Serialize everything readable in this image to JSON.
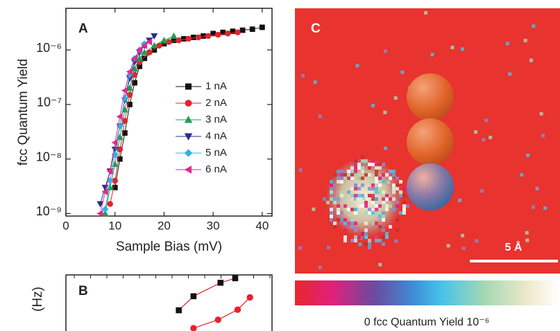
{
  "chart_data": [
    {
      "type": "line",
      "panel": "A",
      "x_label": "Sample Bias (mV)",
      "y_label": "fcc Quantum Yield",
      "yscale": "log",
      "xlim": [
        0,
        42
      ],
      "ylim": [
        9e-10,
        5.8e-06
      ],
      "xticks": [
        0,
        10,
        20,
        30,
        40
      ],
      "yticks": [
        {
          "value": 1e-09,
          "label": "10⁻⁹"
        },
        {
          "value": 1e-08,
          "label": "10⁻⁸"
        },
        {
          "value": 1e-07,
          "label": "10⁻⁷"
        },
        {
          "value": 1e-06,
          "label": "10⁻⁶"
        }
      ],
      "legend": "right",
      "series": [
        {
          "name": "1 nA",
          "color": "#111111",
          "marker": "square",
          "x": [
            10,
            11,
            12,
            13,
            14,
            15,
            16,
            18,
            20,
            22,
            24,
            26,
            28,
            30,
            32,
            34,
            36,
            38,
            40
          ],
          "values": [
            3e-09,
            1e-08,
            3e-08,
            1e-07,
            2.5e-07,
            5e-07,
            7e-07,
            1e-06,
            1.3e-06,
            1.5e-06,
            1.6e-06,
            1.7e-06,
            1.8e-06,
            2e-06,
            2.1e-06,
            2.2e-06,
            2.3e-06,
            2.4e-06,
            2.6e-06
          ]
        },
        {
          "name": "2 nA",
          "color": "#e6222c",
          "marker": "circle",
          "x": [
            9,
            10,
            11,
            12,
            13,
            14,
            15,
            17,
            19,
            21,
            23,
            25,
            27,
            29,
            31,
            33,
            35
          ],
          "values": [
            1.5e-09,
            4e-09,
            1.5e-08,
            5e-08,
            1.5e-07,
            3.5e-07,
            6e-07,
            9e-07,
            1.2e-06,
            1.4e-06,
            1.5e-06,
            1.6e-06,
            1.7e-06,
            1.8e-06,
            1.9e-06,
            2e-06,
            2.1e-06
          ]
        },
        {
          "name": "3 nA",
          "color": "#1f9e55",
          "marker": "triangle-up",
          "x": [
            8,
            9,
            10,
            11,
            12,
            13,
            14,
            15,
            16,
            18,
            20,
            22
          ],
          "values": [
            1e-09,
            3e-09,
            8e-09,
            2.5e-08,
            8e-08,
            2e-07,
            4.5e-07,
            7e-07,
            9e-07,
            1.2e-06,
            1.5e-06,
            1.8e-06
          ]
        },
        {
          "name": "4 nA",
          "color": "#2c2c8c",
          "marker": "triangle-down",
          "x": [
            7,
            8,
            9,
            10,
            11,
            12,
            13,
            14,
            15,
            16,
            17,
            18
          ],
          "values": [
            1.5e-09,
            3e-09,
            6e-09,
            1.5e-08,
            4e-08,
            1.2e-07,
            3e-07,
            6e-07,
            9e-07,
            1.2e-06,
            1.5e-06,
            1.8e-06
          ]
        },
        {
          "name": "5 nA",
          "color": "#2fb2e6",
          "marker": "diamond",
          "x": [
            8,
            9,
            10,
            11,
            12,
            13,
            14,
            15,
            16
          ],
          "values": [
            1.2e-09,
            4e-09,
            1.2e-08,
            4e-08,
            1.3e-07,
            3.5e-07,
            7e-07,
            1e-06,
            1.3e-06
          ]
        },
        {
          "name": "6 nA",
          "color": "#e02a8c",
          "marker": "triangle-left",
          "x": [
            7,
            8,
            9,
            10,
            11,
            12,
            13,
            14,
            15,
            16,
            17
          ],
          "values": [
            1e-09,
            2.5e-09,
            6e-09,
            2e-08,
            6e-08,
            1.8e-07,
            4e-07,
            7e-07,
            1e-06,
            1.2e-06,
            1.4e-06
          ]
        }
      ]
    },
    {
      "type": "scatter",
      "panel": "B",
      "y_label": "(Hz)",
      "xlim": [
        0,
        42
      ],
      "ylim": [
        0,
        1
      ],
      "series": [
        {
          "color": "#111111",
          "line_color": "#e6222c",
          "marker": "square",
          "x": [
            23,
            26,
            31.5,
            34.5
          ],
          "values": [
            0.37,
            0.62,
            0.86,
            0.94
          ]
        },
        {
          "color": "#e6222c",
          "line_color": "#e6222c",
          "marker": "circle",
          "x": [
            26,
            31,
            35,
            37.5
          ],
          "values": [
            0.05,
            0.2,
            0.38,
            0.6
          ]
        }
      ]
    }
  ],
  "image_panel": {
    "panel": "C",
    "scale_bar": "5 Å",
    "colorbar_label": "0 fcc Quantum Yield 10⁻⁶"
  }
}
